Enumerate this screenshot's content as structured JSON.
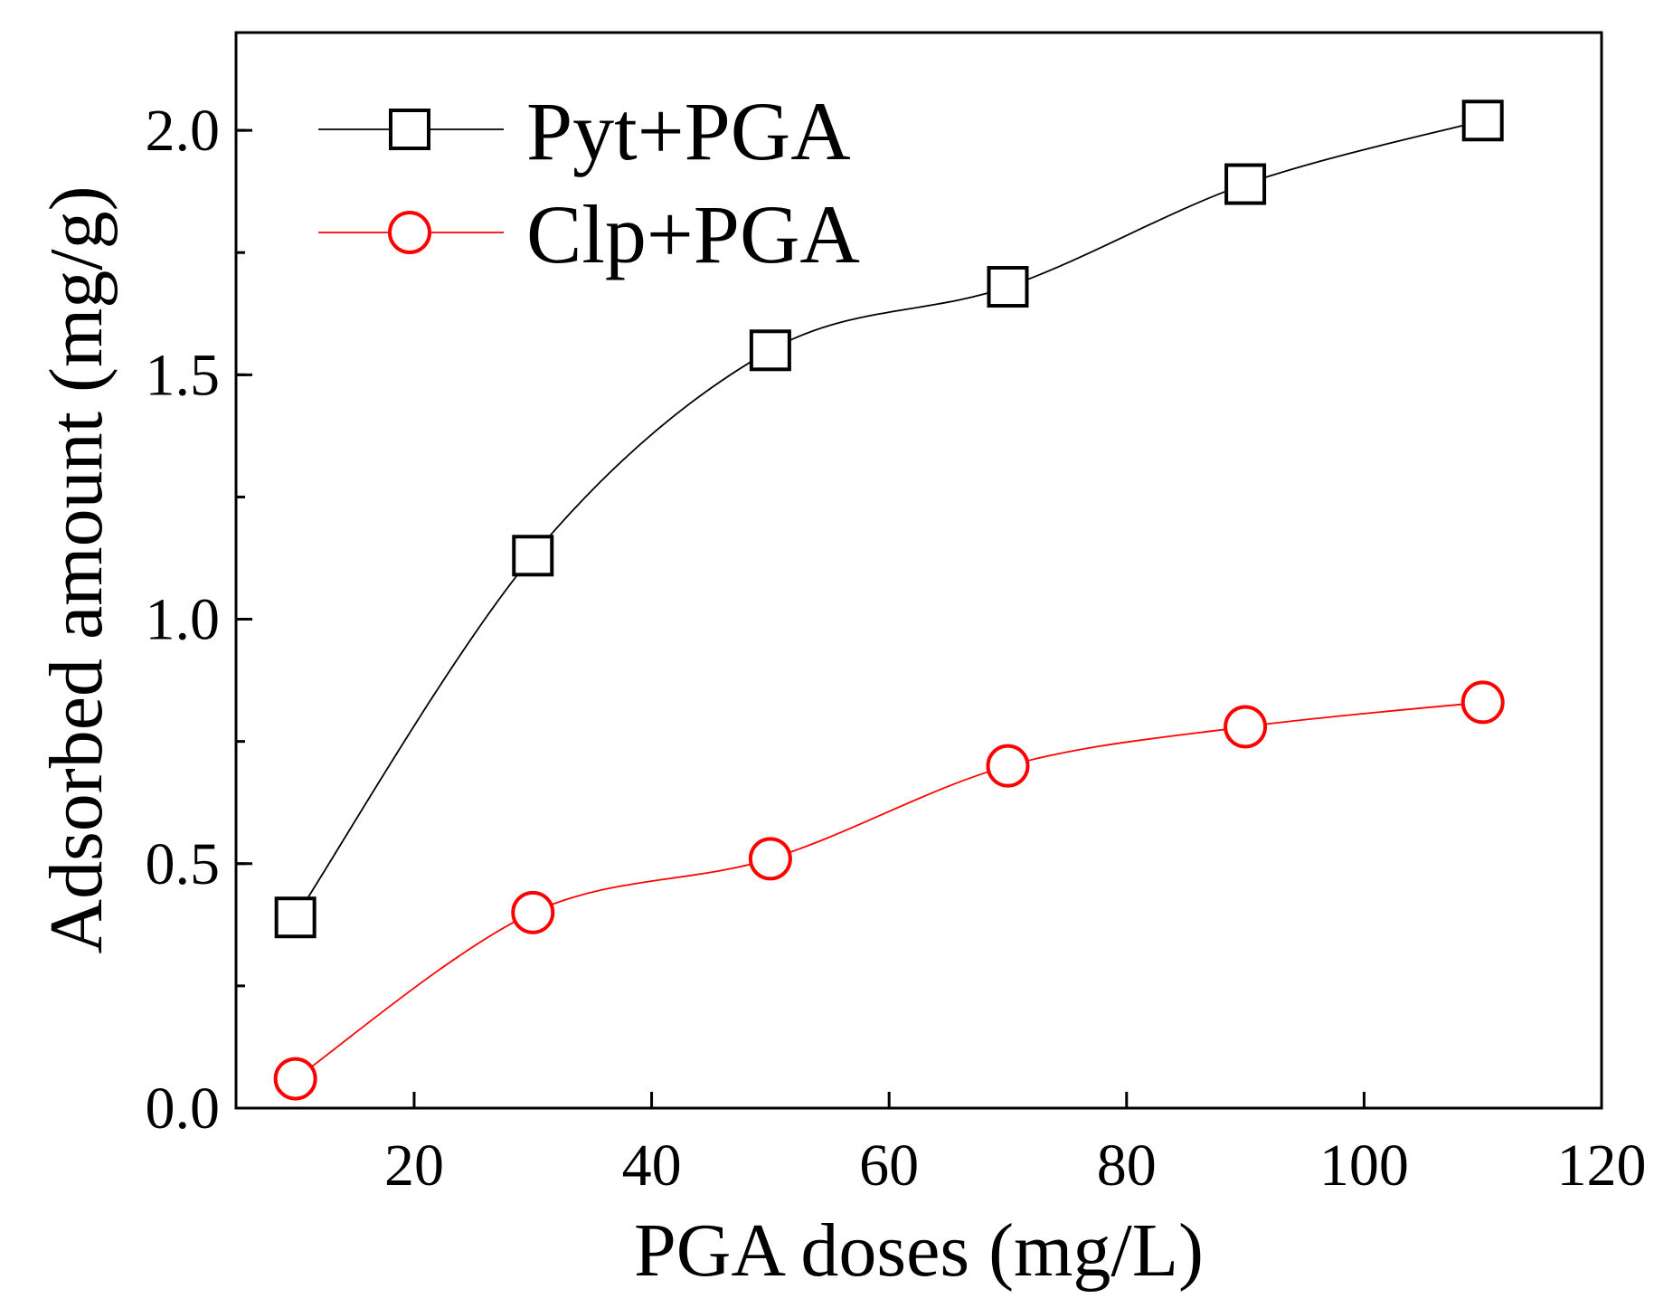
{
  "chart_data": {
    "type": "line",
    "title": "",
    "xlabel": "PGA doses (mg/L)",
    "ylabel": "Adsorbed amount (mg/g)",
    "xlim": [
      5,
      120
    ],
    "ylim": [
      0,
      2.2
    ],
    "xticks": [
      20,
      40,
      60,
      80,
      100,
      120
    ],
    "yticks": [
      0.0,
      0.5,
      1.0,
      1.5,
      2.0
    ],
    "ytick_labels": [
      "0.0",
      "0.5",
      "1.0",
      "1.5",
      "2.0"
    ],
    "yminor_step": 0.25,
    "grid": false,
    "legend_position": "top-left",
    "x": [
      10,
      30,
      50,
      70,
      90,
      110
    ],
    "series": [
      {
        "name": "Pyt+PGA",
        "marker": "square",
        "color": "#000000",
        "values": [
          0.39,
          1.13,
          1.55,
          1.68,
          1.89,
          2.02
        ]
      },
      {
        "name": "Clp+PGA",
        "marker": "circle",
        "color": "#ff0000",
        "values": [
          0.06,
          0.4,
          0.51,
          0.7,
          0.78,
          0.83
        ]
      }
    ]
  }
}
